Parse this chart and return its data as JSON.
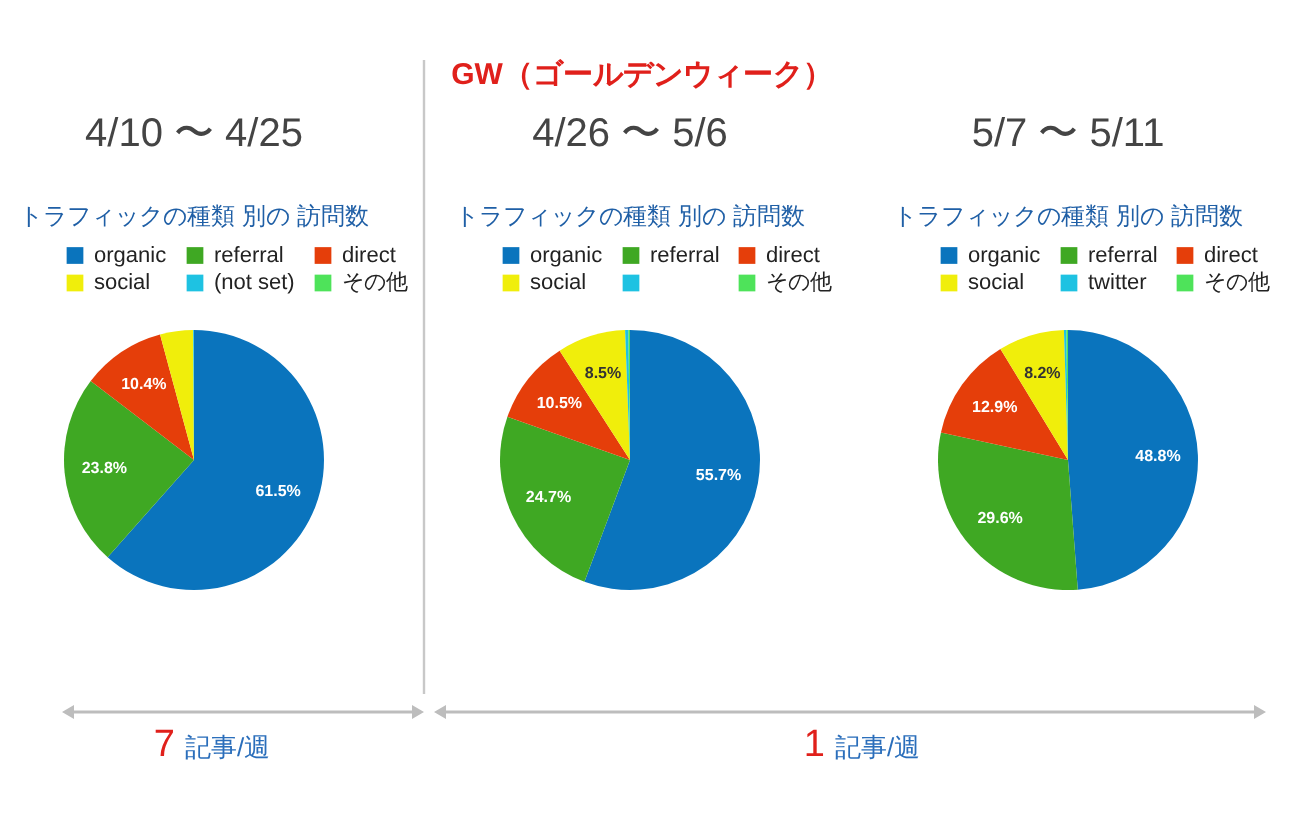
{
  "chart_data": [
    {
      "type": "pie",
      "title": "4/10 〜 4/25",
      "subtitle": "トラフィックの種類 別の 訪問数",
      "categories": [
        "organic",
        "referral",
        "direct",
        "social",
        "(not set)",
        "その他"
      ],
      "values": [
        61.5,
        23.8,
        10.4,
        4.1,
        0.1,
        null
      ],
      "colors": [
        "#0a74bd",
        "#3fa823",
        "#e53e0a",
        "#f0ee0b",
        "#1ec2e2",
        "#4ee35a"
      ],
      "value_labels": [
        "61.5%",
        "23.8%",
        "10.4%",
        null,
        null,
        null
      ],
      "legend": "top",
      "annotations": [
        "7 記事/週"
      ]
    },
    {
      "type": "pie",
      "title": "4/26 〜 5/6",
      "subtitle": "トラフィックの種類 別の 訪問数",
      "categories": [
        "organic",
        "referral",
        "direct",
        "social",
        null,
        "その他"
      ],
      "values": [
        55.7,
        24.7,
        10.5,
        8.5,
        0.4,
        0.2
      ],
      "colors": [
        "#0a74bd",
        "#3fa823",
        "#e53e0a",
        "#f0ee0b",
        "#1ec2e2",
        "#4ee35a"
      ],
      "value_labels": [
        "55.7%",
        "24.7%",
        "10.5%",
        "8.5%",
        null,
        null
      ],
      "legend": "top",
      "annotations": [
        "GW（ゴールデンウィーク）",
        "1 記事/週"
      ]
    },
    {
      "type": "pie",
      "title": "5/7 〜 5/11",
      "subtitle": "トラフィックの種類 別の 訪問数",
      "categories": [
        "organic",
        "referral",
        "direct",
        "social",
        "twitter",
        "その他"
      ],
      "values": [
        48.8,
        29.6,
        12.9,
        8.2,
        0.3,
        0.2
      ],
      "colors": [
        "#0a74bd",
        "#3fa823",
        "#e53e0a",
        "#f0ee0b",
        "#1ec2e2",
        "#4ee35a"
      ],
      "value_labels": [
        "48.8%",
        "29.6%",
        "12.9%",
        "8.2%",
        null,
        null
      ],
      "legend": "top"
    }
  ]
}
